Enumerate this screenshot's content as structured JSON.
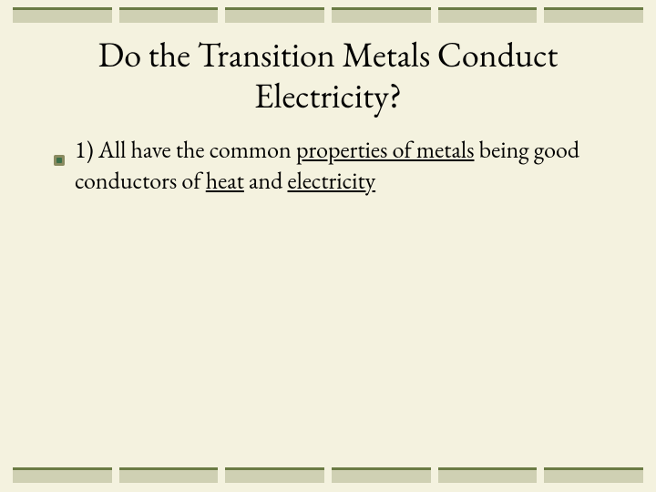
{
  "background_color": "#f4f2df",
  "title": "Do the Transition Metals Conduct Electricity?",
  "title_fontsize": 38,
  "text_color": "#000000",
  "bullet": {
    "segments": [
      {
        "text": "1)  All have the common ",
        "underline": false
      },
      {
        "text": "properties of metals",
        "underline": true
      },
      {
        "text": " being good conductors of ",
        "underline": false
      },
      {
        "text": "heat",
        "underline": true
      },
      {
        "text": " and ",
        "underline": false
      },
      {
        "text": "electricity",
        "underline": true
      }
    ],
    "icon": {
      "outer_color": "#8a8b60",
      "inner_color": "#3b6e47",
      "size": 14
    }
  },
  "bars": {
    "segment_count": 6,
    "segment_height": 14,
    "fill_color": "#cfd0b3",
    "border_top_color": "#6a7b44",
    "gap": 8
  }
}
